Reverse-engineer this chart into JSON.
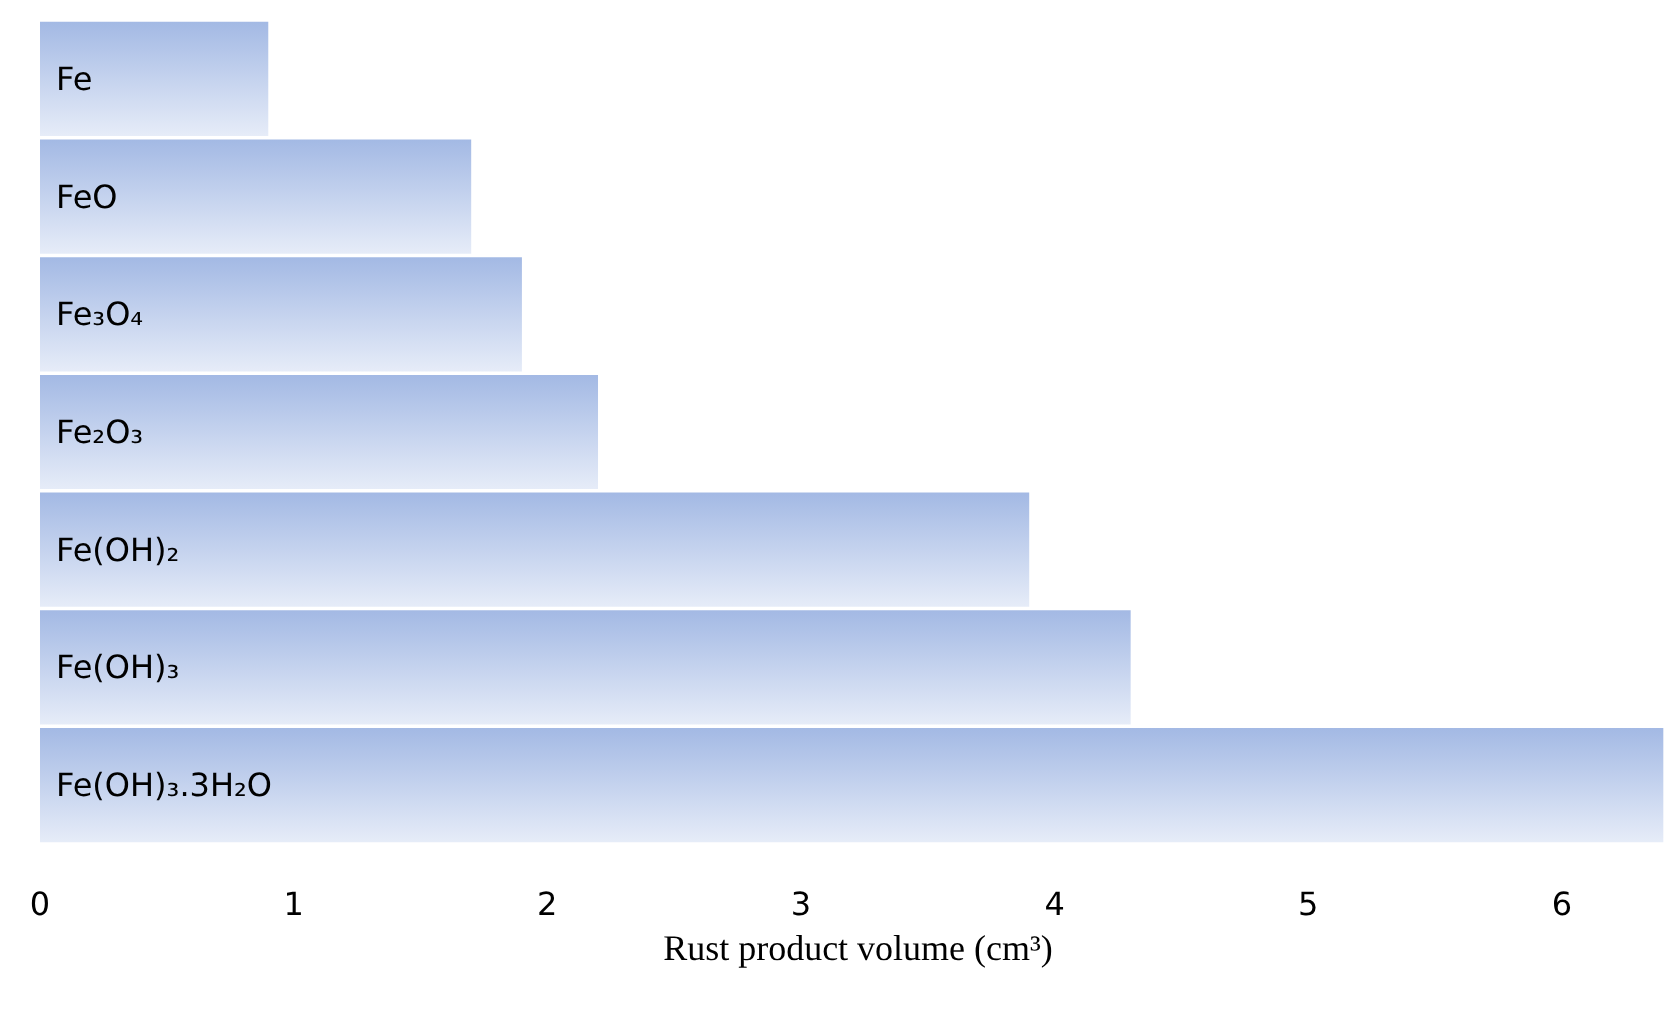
{
  "chart_data": {
    "type": "bar",
    "orientation": "horizontal",
    "categories": [
      "Fe",
      "FeO",
      "Fe₃O₄",
      "Fe₂O₃",
      "Fe(OH)₂",
      "Fe(OH)₃",
      "Fe(OH)₃.3H₂O"
    ],
    "values": [
      0.9,
      1.7,
      1.9,
      2.2,
      3.9,
      4.3,
      6.4
    ],
    "color": "#a3b9e4",
    "xlim": [
      0,
      6.45
    ],
    "xticks": [
      0,
      1,
      2,
      3,
      4,
      5,
      6
    ],
    "xlabel": "Rust product volume (cm³)",
    "grid": false
  }
}
